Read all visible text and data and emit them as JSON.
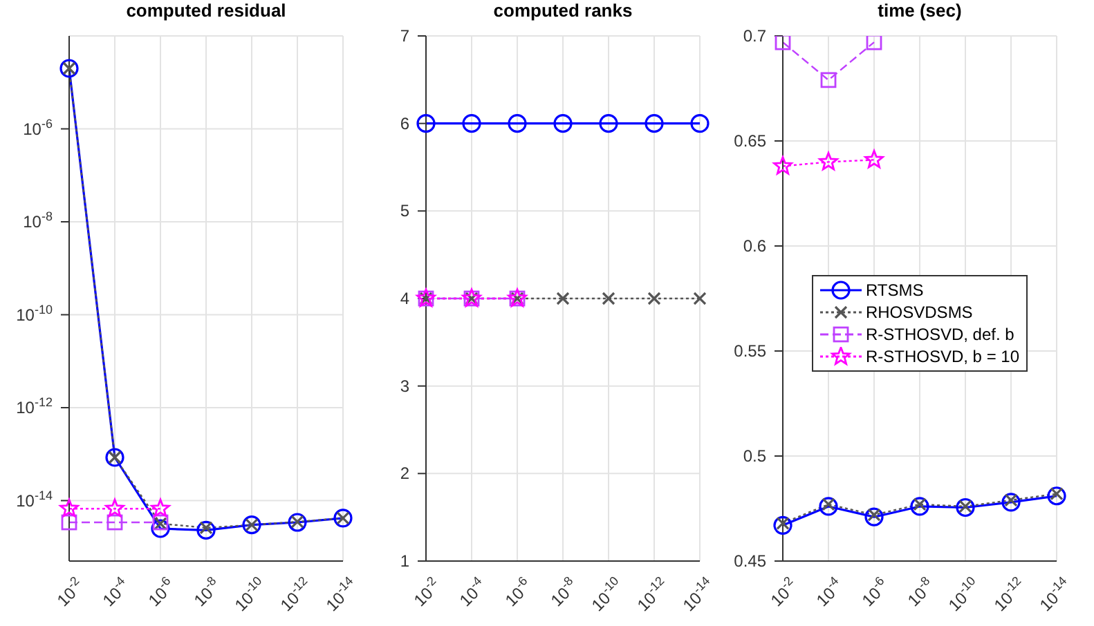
{
  "chart_data": [
    {
      "type": "line",
      "title": "computed residual",
      "categories": [
        "10$^{-2}$",
        "10$^{-4}$",
        "10$^{-6}$",
        "10$^{-8}$",
        "10$^{-10}$",
        "10$^{-12}$",
        "10$^{-14}$"
      ],
      "log": "y",
      "ylim": [
        5e-16,
        0.0001
      ],
      "yticks": [
        {
          "value": 1e-14,
          "label": "10$^{-14}$"
        },
        {
          "value": 1e-12,
          "label": "10$^{-12}$"
        },
        {
          "value": 1e-10,
          "label": "10$^{-10}$"
        },
        {
          "value": 1e-08,
          "label": "10$^{-8}$"
        },
        {
          "value": 1e-06,
          "label": "10$^{-6}$"
        }
      ],
      "grid": true,
      "series": [
        {
          "color": "#0000ff",
          "marker": "circle",
          "line_style": "solid",
          "values": [
            2e-05,
            8.5e-14,
            2.5e-15,
            2.3e-15,
            3e-15,
            3.4e-15,
            4.2e-15
          ]
        },
        {
          "color": "#555555",
          "marker": "cross",
          "line_style": "dotted",
          "values": [
            2e-05,
            8.5e-14,
            3.2e-15,
            2.6e-15,
            3e-15,
            3.5e-15,
            4.2e-15
          ]
        },
        {
          "color": "#bf40ff",
          "marker": "square",
          "line_style": "dashed",
          "values": [
            3.4e-15,
            3.4e-15,
            3.4e-15,
            null,
            null,
            null,
            null
          ]
        },
        {
          "color": "#ff00ff",
          "marker": "star",
          "line_style": "dotted",
          "values": [
            6.7e-15,
            6.7e-15,
            6.7e-15,
            null,
            null,
            null,
            null
          ]
        }
      ]
    },
    {
      "type": "line",
      "title": "computed ranks",
      "categories": [
        "10$^{-2}$",
        "10$^{-4}$",
        "10$^{-6}$",
        "10$^{-8}$",
        "10$^{-10}$",
        "10$^{-12}$",
        "10$^{-14}$"
      ],
      "ylim": [
        1,
        7
      ],
      "yticks": [
        1,
        2,
        3,
        4,
        5,
        6,
        7
      ],
      "grid": true,
      "series": [
        {
          "color": "#0000ff",
          "marker": "circle",
          "line_style": "solid",
          "values": [
            6,
            6,
            6,
            6,
            6,
            6,
            6
          ]
        },
        {
          "color": "#555555",
          "marker": "cross",
          "line_style": "dotted",
          "values": [
            4,
            4,
            4,
            4,
            4,
            4,
            4
          ]
        },
        {
          "color": "#bf40ff",
          "marker": "square",
          "line_style": "dashed",
          "values": [
            4,
            4,
            4,
            null,
            null,
            null,
            null
          ]
        },
        {
          "color": "#ff00ff",
          "marker": "star",
          "line_style": "dotted",
          "values": [
            4,
            4,
            4,
            null,
            null,
            null,
            null
          ]
        }
      ]
    },
    {
      "type": "line",
      "title": "time (sec)",
      "categories": [
        "10$^{-2}$",
        "10$^{-4}$",
        "10$^{-6}$",
        "10$^{-8}$",
        "10$^{-10}$",
        "10$^{-12}$",
        "10$^{-14}$"
      ],
      "ylim": [
        0.45,
        0.7
      ],
      "yticks": [
        0.45,
        0.5,
        0.55,
        0.6,
        0.65,
        0.7
      ],
      "grid": true,
      "legend": "center",
      "series": [
        {
          "name": "RTSMS",
          "color": "#0000ff",
          "marker": "circle",
          "line_style": "solid",
          "values": [
            0.467,
            0.476,
            0.471,
            0.476,
            0.4755,
            0.478,
            0.481
          ]
        },
        {
          "name": "RHOSVDSMS",
          "color": "#555555",
          "marker": "cross",
          "line_style": "dotted",
          "values": [
            0.468,
            0.477,
            0.472,
            0.477,
            0.476,
            0.479,
            0.482
          ]
        },
        {
          "name": "R-STHOSVD, def. b",
          "color": "#bf40ff",
          "marker": "square",
          "line_style": "dashed",
          "values": [
            0.697,
            0.679,
            0.697,
            null,
            null,
            null,
            null
          ]
        },
        {
          "name": "R-STHOSVD, b = 10",
          "color": "#ff00ff",
          "marker": "star",
          "line_style": "dotted",
          "values": [
            0.638,
            0.64,
            0.641,
            null,
            null,
            null,
            null
          ]
        }
      ]
    }
  ]
}
